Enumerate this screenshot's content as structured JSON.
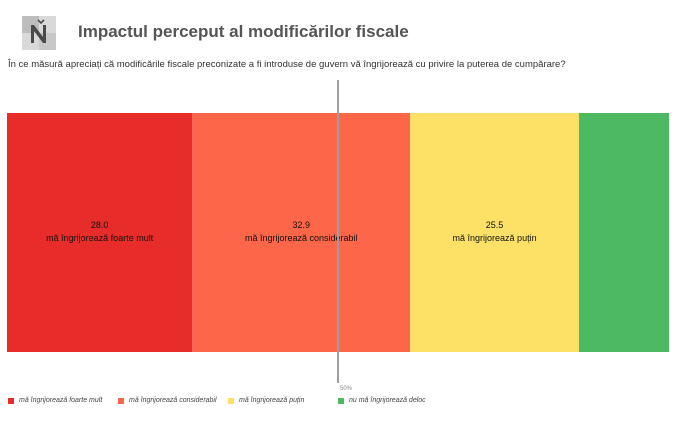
{
  "header": {
    "title": "Impactul perceput al modificărilor fiscale",
    "question": "În ce măsură apreciați că modificările fiscale preconizate a fi introduse de guvern vă îngrijorează cu privire la puterea de cumpărare?"
  },
  "chart_data": {
    "type": "bar",
    "orientation": "horizontal-stacked-100",
    "categories": [
      "mă îngrijorează foarte mult",
      "mă îngrijorează considerabil",
      "mă îngrijorează puțin",
      "nu mă îngrijorează deloc"
    ],
    "values": [
      28.0,
      32.9,
      25.5,
      13.6
    ],
    "value_labels": [
      "28.0",
      "32.9",
      "25.5",
      ""
    ],
    "colors": [
      "#e82c2a",
      "#fd6648",
      "#fde166",
      "#4db963"
    ],
    "reference_line": {
      "value": 50,
      "label": "50%"
    },
    "legend": [
      "mă îngrijorează foarte mult",
      "mă îngrijorează considerabil",
      "mă îngrijorează puțin",
      "nu mă îngrijorează deloc"
    ],
    "legend_position": "bottom"
  }
}
